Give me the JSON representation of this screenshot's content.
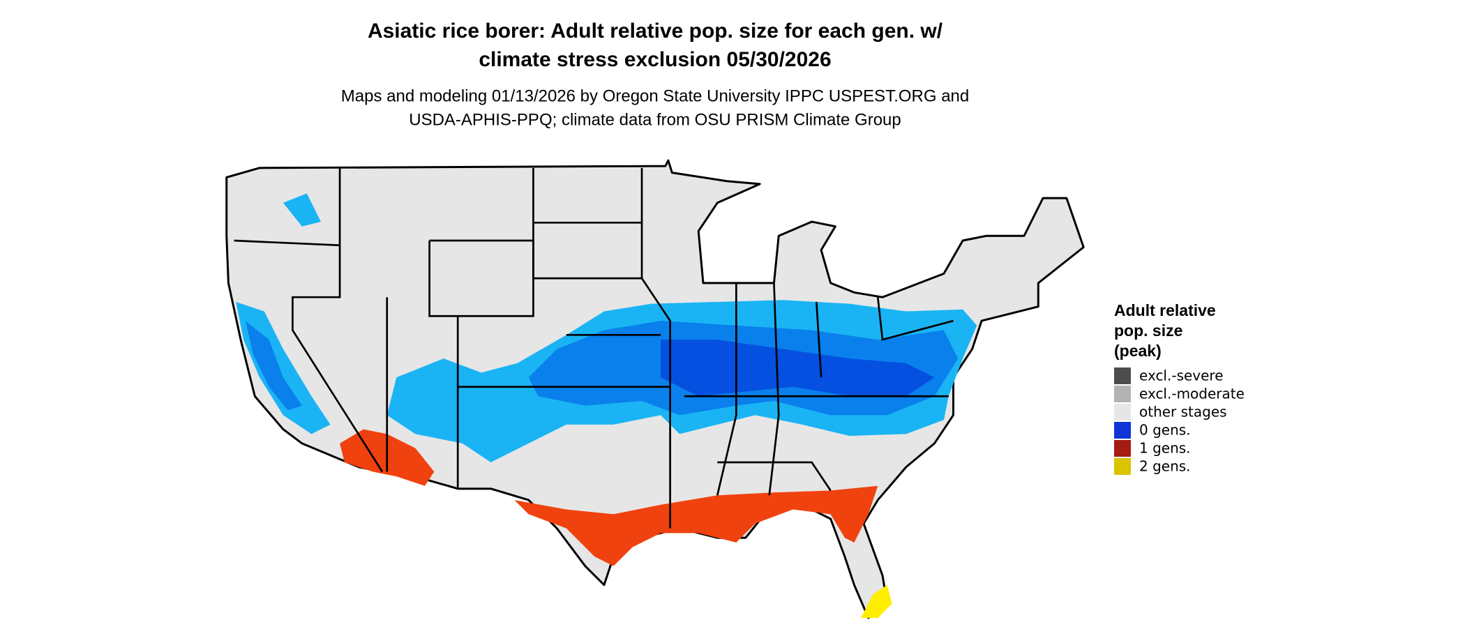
{
  "title": [
    "Asiatic rice borer: Adult relative pop. size for each gen. w/",
    "climate stress exclusion 05/30/2026"
  ],
  "subtitle": [
    "Maps and modeling 01/13/2026 by Oregon State University IPPC USPEST.ORG and",
    "USDA-APHIS-PPQ; climate data from OSU PRISM Climate Group"
  ],
  "legend": {
    "title": [
      "Adult relative",
      "pop. size",
      "(peak)"
    ],
    "items": [
      {
        "label": "excl.-severe",
        "color": "#4d4d4d"
      },
      {
        "label": "excl.-moderate",
        "color": "#b3b3b3"
      },
      {
        "label": "other stages",
        "color": "#e6e6e6"
      },
      {
        "label": "0 gens.",
        "color": "#1034d6"
      },
      {
        "label": "1 gens.",
        "color": "#a51c12"
      },
      {
        "label": "2 gens.",
        "color": "#d9c400"
      }
    ]
  }
}
